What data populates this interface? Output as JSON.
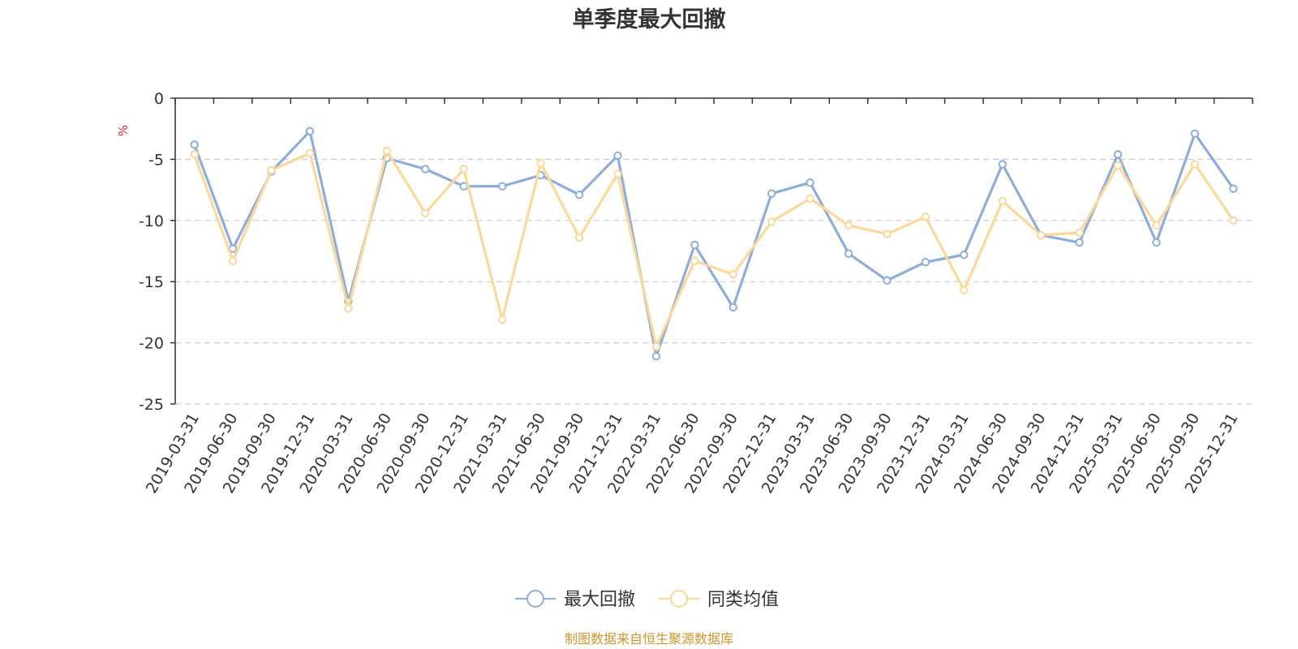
{
  "chart_data": {
    "type": "line",
    "title": "单季度最大回撤",
    "ylabel": "%",
    "ylim": [
      -25,
      0
    ],
    "yticks": [
      "0",
      "-5",
      "-10",
      "-15",
      "-20",
      "-25"
    ],
    "ytick_values": [
      0,
      -5,
      -10,
      -15,
      -20,
      -25
    ],
    "grid": "horizontal-dashed",
    "legend_position": "bottom-center",
    "categories": [
      "2019-03-31",
      "2019-06-30",
      "2019-09-30",
      "2019-12-31",
      "2020-03-31",
      "2020-06-30",
      "2020-09-30",
      "2020-12-31",
      "2021-03-31",
      "2021-06-30",
      "2021-09-30",
      "2021-12-31",
      "2022-03-31",
      "2022-06-30",
      "2022-09-30",
      "2022-12-31",
      "2023-03-31",
      "2023-06-30",
      "2023-09-30",
      "2023-12-31",
      "2024-03-31",
      "2024-06-30",
      "2024-09-30",
      "2024-12-31",
      "2025-03-31",
      "2025-06-30",
      "2025-09-30",
      "2025-12-31"
    ],
    "series": [
      {
        "name": "最大回撤",
        "color": "#8eadd9",
        "values": [
          -3.8,
          -12.3,
          -6.0,
          -2.7,
          -16.6,
          -4.9,
          -5.8,
          -7.2,
          -7.2,
          -6.3,
          -7.9,
          -4.7,
          -21.1,
          -12.0,
          -17.1,
          -7.8,
          -6.9,
          -12.7,
          -14.9,
          -13.4,
          -12.8,
          -5.4,
          -11.2,
          -11.8,
          -4.6,
          -11.8,
          -2.9,
          -7.4
        ]
      },
      {
        "name": "同类均值",
        "color": "#fbd89b",
        "values": [
          -4.6,
          -13.3,
          -5.9,
          -4.5,
          -17.2,
          -4.3,
          -9.4,
          -5.8,
          -18.1,
          -5.3,
          -11.4,
          -6.2,
          -20.3,
          -13.3,
          -14.4,
          -10.1,
          -8.2,
          -10.4,
          -11.1,
          -9.7,
          -15.7,
          -8.4,
          -11.2,
          -11.0,
          -5.5,
          -10.4,
          -5.4,
          -10.0
        ]
      }
    ]
  },
  "source": "制图数据来自恒生聚源数据库"
}
